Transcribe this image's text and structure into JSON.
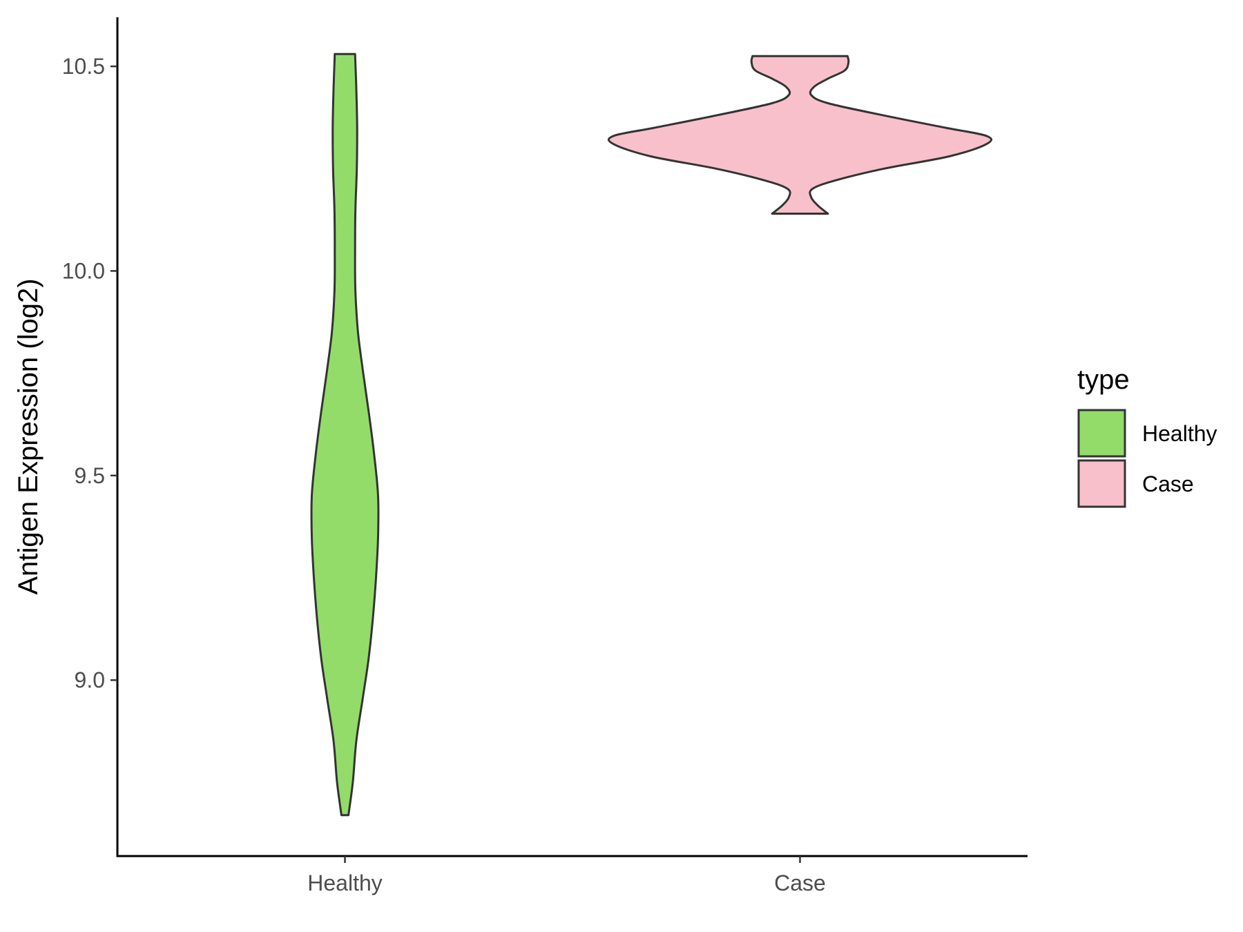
{
  "chart_data": {
    "type": "violin",
    "ylabel": "Antigen Expression (log2)",
    "xlabel": "",
    "ylim": [
      8.57,
      10.62
    ],
    "yticks": [
      9.0,
      9.5,
      10.0,
      10.5
    ],
    "ytick_labels": [
      "9.0",
      "9.5",
      "10.0",
      "10.5"
    ],
    "categories": [
      "Healthy",
      "Case"
    ],
    "grid": false,
    "legend": {
      "title": "type",
      "position": "right",
      "entries": [
        "Healthy",
        "Case"
      ]
    },
    "series": [
      {
        "name": "Healthy",
        "color": "#93dc6a",
        "min": 8.67,
        "max": 10.53,
        "density": [
          [
            8.67,
            0.02
          ],
          [
            8.75,
            0.045
          ],
          [
            8.85,
            0.065
          ],
          [
            8.95,
            0.1
          ],
          [
            9.05,
            0.135
          ],
          [
            9.15,
            0.16
          ],
          [
            9.25,
            0.178
          ],
          [
            9.35,
            0.19
          ],
          [
            9.45,
            0.19
          ],
          [
            9.55,
            0.168
          ],
          [
            9.65,
            0.138
          ],
          [
            9.75,
            0.105
          ],
          [
            9.85,
            0.075
          ],
          [
            9.95,
            0.06
          ],
          [
            10.05,
            0.058
          ],
          [
            10.15,
            0.06
          ],
          [
            10.25,
            0.068
          ],
          [
            10.35,
            0.07
          ],
          [
            10.45,
            0.065
          ],
          [
            10.53,
            0.058
          ]
        ]
      },
      {
        "name": "Case",
        "color": "#f8c0cb",
        "min": 10.14,
        "max": 10.525,
        "density": [
          [
            10.14,
            0.15
          ],
          [
            10.16,
            0.095
          ],
          [
            10.18,
            0.06
          ],
          [
            10.2,
            0.065
          ],
          [
            10.22,
            0.18
          ],
          [
            10.25,
            0.45
          ],
          [
            10.28,
            0.8
          ],
          [
            10.31,
            1.0
          ],
          [
            10.33,
            1.0
          ],
          [
            10.35,
            0.78
          ],
          [
            10.38,
            0.45
          ],
          [
            10.41,
            0.15
          ],
          [
            10.43,
            0.06
          ],
          [
            10.45,
            0.075
          ],
          [
            10.47,
            0.15
          ],
          [
            10.49,
            0.24
          ],
          [
            10.51,
            0.26
          ],
          [
            10.525,
            0.255
          ]
        ]
      }
    ]
  }
}
